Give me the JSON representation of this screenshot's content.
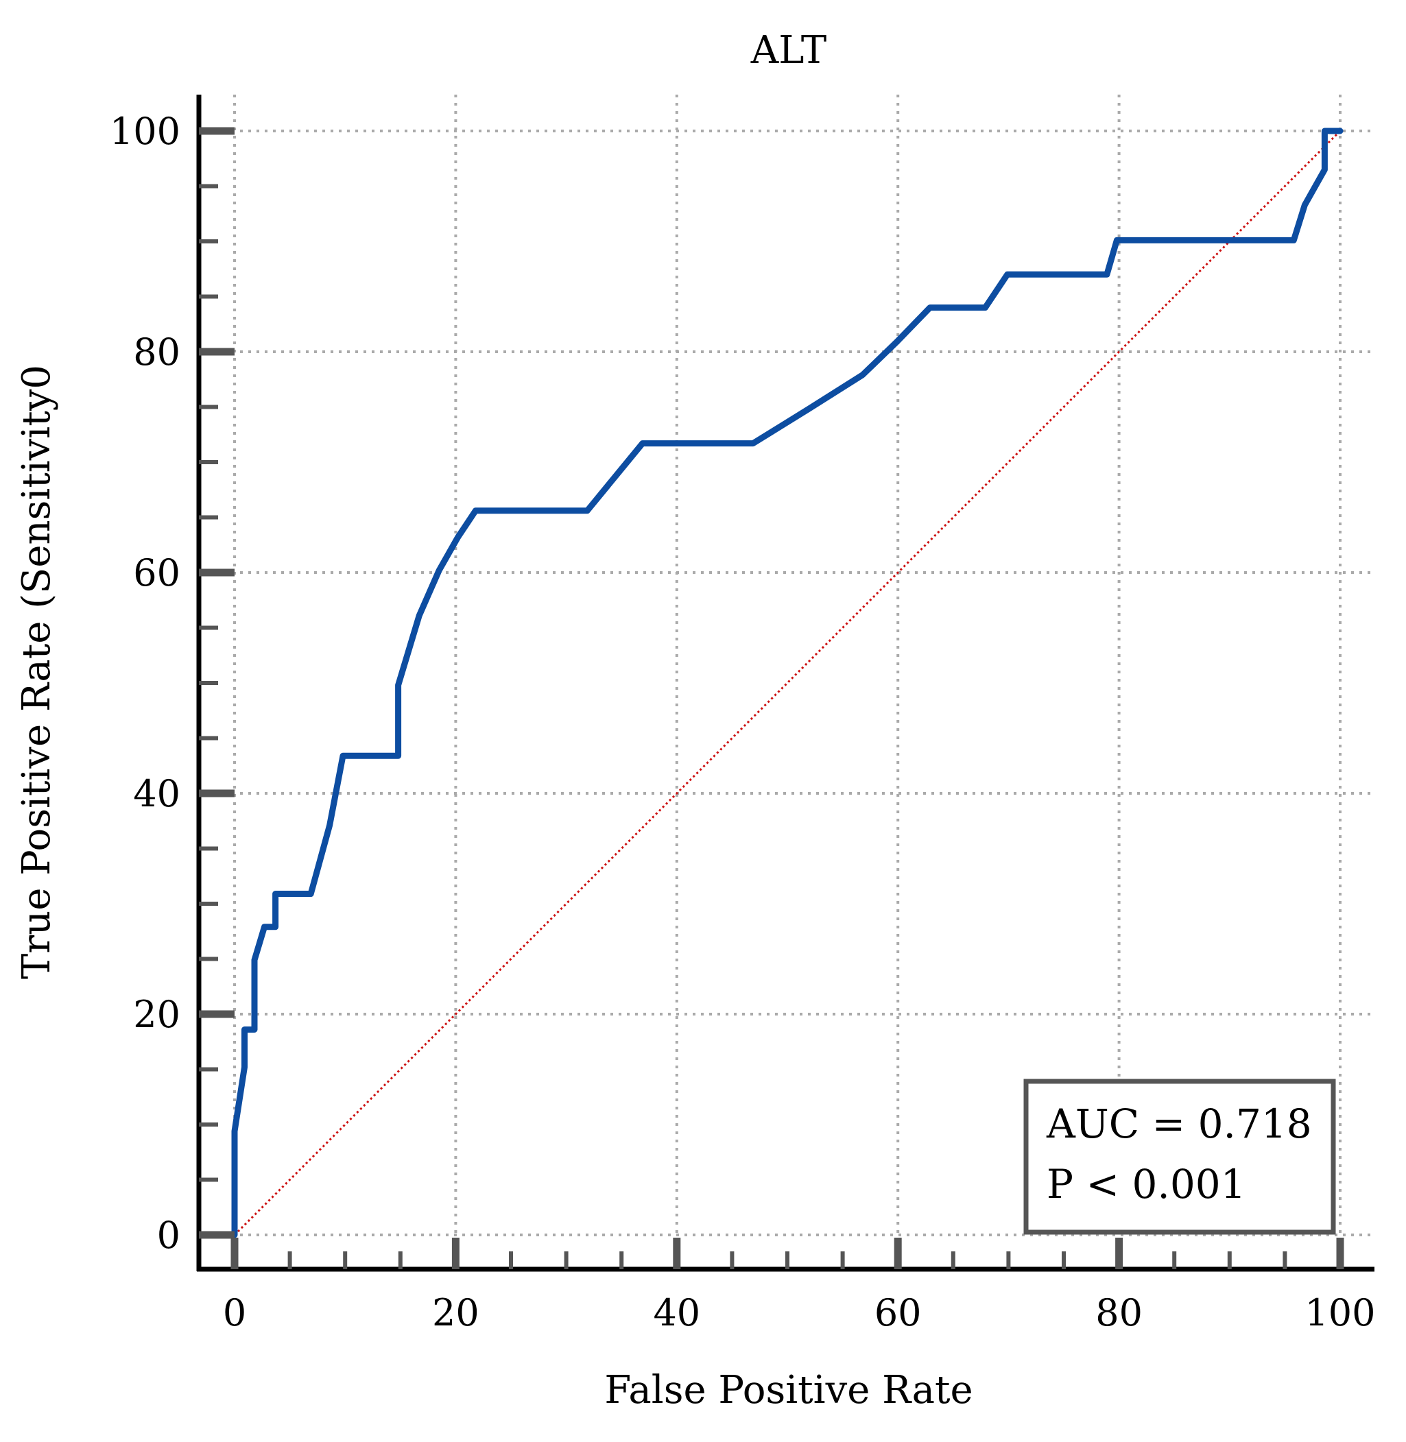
{
  "chart_data": {
    "type": "line",
    "title": "ALT",
    "xlabel": "False Positive Rate",
    "ylabel": "True Positive Rate (Sensitivity0",
    "xlim": [
      0,
      100
    ],
    "ylim": [
      0,
      100
    ],
    "x_ticks": [
      0,
      20,
      40,
      60,
      80,
      100
    ],
    "y_ticks": [
      0,
      20,
      40,
      60,
      80,
      100
    ],
    "x_tick_labels": [
      "0",
      "20",
      "40",
      "60",
      "80",
      "100"
    ],
    "y_tick_labels": [
      "0",
      "20",
      "40",
      "60",
      "80",
      "100"
    ],
    "grid": true,
    "series": [
      {
        "color": "#0d4da1",
        "points": [
          [
            0,
            0
          ],
          [
            0,
            9.4
          ],
          [
            0.9,
            15.2
          ],
          [
            0.9,
            18.6
          ],
          [
            1.8,
            18.6
          ],
          [
            1.8,
            24.9
          ],
          [
            2.7,
            27.9
          ],
          [
            3.7,
            27.9
          ],
          [
            3.7,
            30.9
          ],
          [
            6.9,
            30.9
          ],
          [
            8.6,
            37.1
          ],
          [
            9.8,
            43.4
          ],
          [
            14.8,
            43.4
          ],
          [
            14.8,
            49.8
          ],
          [
            16.7,
            56.1
          ],
          [
            18.5,
            60.2
          ],
          [
            20.2,
            63.2
          ],
          [
            21.8,
            65.6
          ],
          [
            31.9,
            65.6
          ],
          [
            36.9,
            71.7
          ],
          [
            46.9,
            71.7
          ],
          [
            51.9,
            74.8
          ],
          [
            56.8,
            77.9
          ],
          [
            59.9,
            80.9
          ],
          [
            62.9,
            84.0
          ],
          [
            67.9,
            84.0
          ],
          [
            69.9,
            87.0
          ],
          [
            78.9,
            87.0
          ],
          [
            79.8,
            90.1
          ],
          [
            95.8,
            90.1
          ],
          [
            96.8,
            93.3
          ],
          [
            98.6,
            96.5
          ],
          [
            98.6,
            100
          ],
          [
            100,
            100
          ]
        ]
      }
    ],
    "reference_line": {
      "points": [
        [
          0,
          0
        ],
        [
          100,
          100
        ]
      ],
      "color": "#cc1111",
      "style": "dotted"
    },
    "annotation": {
      "lines": [
        "AUC = 0.718",
        "P < 0.001"
      ],
      "placement": "bottom-right"
    }
  }
}
